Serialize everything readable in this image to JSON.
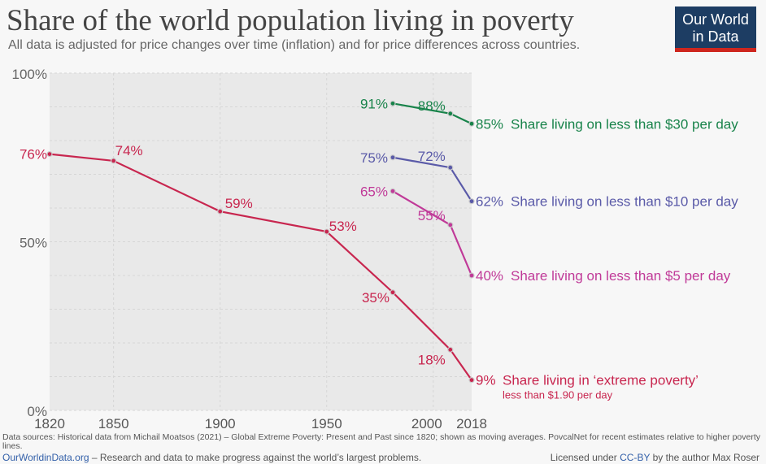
{
  "header": {
    "title": "Share of the world population living in poverty",
    "subtitle": "All data is adjusted for price changes over time (inflation) and for price differences across countries.",
    "logo": "Our World in Data"
  },
  "chart_data": {
    "type": "line",
    "title": "Share of the world population living in poverty",
    "xlim": [
      1820,
      2018
    ],
    "ylim": [
      0,
      100
    ],
    "x_ticks": [
      "1820",
      "1850",
      "1900",
      "1950",
      "2000",
      "2018"
    ],
    "y_ticks": [
      "0%",
      "50%",
      "100%"
    ],
    "grid": true,
    "series": [
      {
        "name": "Share living on less than $30 per day",
        "color": "#18834a",
        "x": [
          1981,
          2008,
          2018
        ],
        "values": [
          91,
          88,
          85
        ],
        "labels": [
          "91%",
          "88%",
          "85%"
        ]
      },
      {
        "name": "Share living on less than $10 per day",
        "color": "#5a5aa8",
        "x": [
          1981,
          2008,
          2018
        ],
        "values": [
          75,
          72,
          62
        ],
        "labels": [
          "75%",
          "72%",
          "62%"
        ]
      },
      {
        "name": "Share living on less than $5 per day",
        "color": "#c03a98",
        "x": [
          1981,
          2008,
          2018
        ],
        "values": [
          65,
          55,
          40
        ],
        "labels": [
          "65%",
          "55%",
          "40%"
        ]
      },
      {
        "name": "Share living in ‘extreme poverty’",
        "sublabel": "less than $1.90 per day",
        "color": "#c8264f",
        "x": [
          1820,
          1850,
          1900,
          1950,
          1981,
          2008,
          2018
        ],
        "values": [
          76,
          74,
          59,
          53,
          35,
          18,
          9
        ],
        "labels": [
          "76%",
          "74%",
          "59%",
          "53%",
          "35%",
          "18%",
          "9%"
        ]
      }
    ]
  },
  "footer": {
    "sources": "Data sources: Historical data from Michail Moatsos (2021) – Global Extreme Poverty: Present and Past since 1820; shown as moving averages. PovcalNet for recent estimates relative to higher poverty lines.",
    "site": "OurWorldinData.org",
    "tagline": " – Research and data to make progress against the world’s largest problems.",
    "license_pre": "Licensed under ",
    "license": "CC-BY",
    "license_post": " by the author Max Roser"
  }
}
